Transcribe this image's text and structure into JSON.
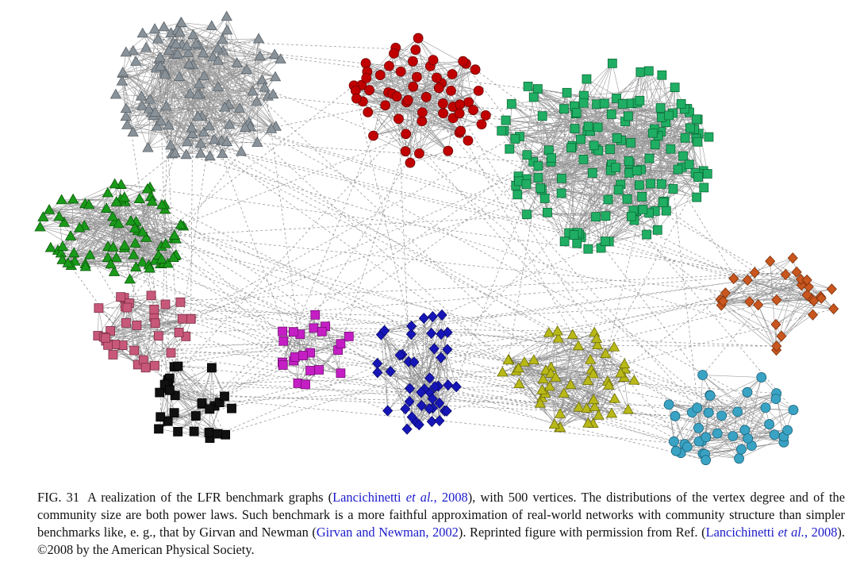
{
  "figure": {
    "label": "FIG. 31",
    "caption": [
      "A realization of the LFR benchmark graphs (",
      "Lancichinetti ",
      "et al.",
      ", 2008",
      "), with 500 vertices. The distributions of the vertex degree and of the community size are both power laws. Such benchmark is a more faithful approximation of real-world networks with community structure than simpler benchmarks like, e. g., that by Girvan and Newman (",
      "Girvan and Newman, 2002",
      "). Reprinted figure with permission from Ref. (",
      "Lancichinetti ",
      "et al.",
      ", 2008",
      "). ",
      "©2008 by the American Physical Society."
    ]
  }
}
